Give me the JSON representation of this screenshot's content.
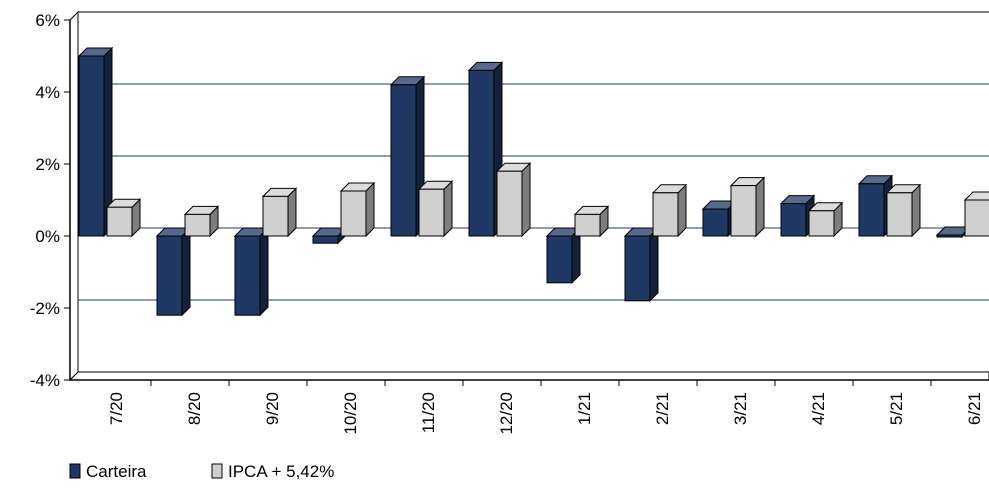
{
  "chart_data": {
    "type": "bar",
    "categories": [
      "7/20",
      "8/20",
      "9/20",
      "10/20",
      "11/20",
      "12/20",
      "1/21",
      "2/21",
      "3/21",
      "4/21",
      "5/21",
      "6/21"
    ],
    "series": [
      {
        "name": "Carteira",
        "values": [
          5.0,
          -2.2,
          -2.2,
          -0.2,
          4.2,
          4.6,
          -1.3,
          -1.8,
          0.75,
          0.9,
          1.45,
          0.05
        ],
        "color": "#1f3864"
      },
      {
        "name": "IPCA + 5,42%",
        "values": [
          0.8,
          0.6,
          1.1,
          1.25,
          1.3,
          1.8,
          0.6,
          1.2,
          1.4,
          0.7,
          1.2,
          1.0
        ],
        "color": "#d0d0d0"
      }
    ],
    "y_ticks": [
      "-4%",
      "-2%",
      "0%",
      "2%",
      "4%",
      "6%"
    ],
    "ylim": [
      -4,
      6
    ],
    "title": "",
    "xlabel": "",
    "ylabel": "",
    "grid": true,
    "legend_position": "bottom-left",
    "style": "3d-bar"
  }
}
